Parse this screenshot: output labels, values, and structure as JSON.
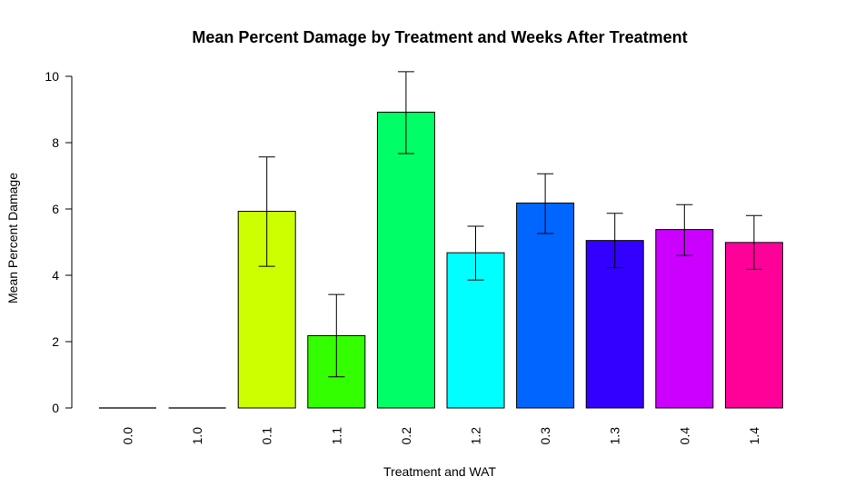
{
  "chart_data": {
    "type": "bar",
    "title": "Mean Percent Damage by Treatment and Weeks After Treatment",
    "xlabel": "Treatment and WAT",
    "ylabel": "Mean Percent Damage",
    "ylim": [
      0,
      10
    ],
    "yticks": [
      "0",
      "2",
      "4",
      "6",
      "8",
      "10"
    ],
    "categories": [
      "0.0",
      "1.0",
      "0.1",
      "1.1",
      "0.2",
      "1.2",
      "0.3",
      "1.3",
      "0.4",
      "1.4"
    ],
    "values": [
      0,
      0,
      5.93,
      2.18,
      8.92,
      4.68,
      6.18,
      5.05,
      5.38,
      4.99
    ],
    "error_low": [
      0,
      0,
      4.27,
      0.94,
      7.67,
      3.86,
      5.26,
      4.23,
      4.6,
      4.18
    ],
    "error_high": [
      0,
      0,
      7.57,
      3.42,
      10.14,
      5.48,
      7.06,
      5.87,
      6.13,
      5.8
    ],
    "colors": [
      "#FF0000",
      "#FF9900",
      "#CCFF00",
      "#33FF00",
      "#00FF66",
      "#00FFFF",
      "#0066FF",
      "#3300FF",
      "#CC00FF",
      "#FF0099"
    ],
    "grid": false,
    "legend": "none"
  }
}
